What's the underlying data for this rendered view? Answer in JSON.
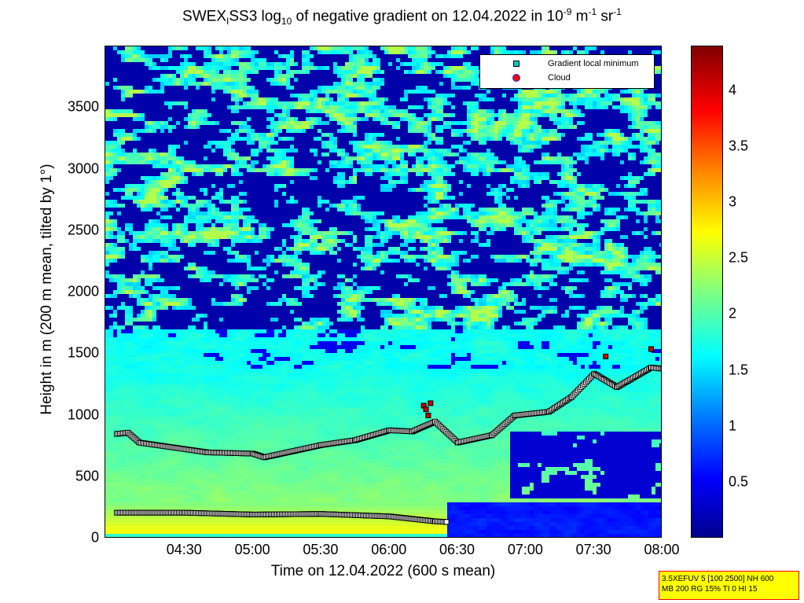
{
  "title": {
    "main": "SWEX",
    "sub1": "I",
    "mid": "SS3 log",
    "sub2": "10",
    "rest": " of negative gradient on 12.04.2022 in 10",
    "sup1": "-9",
    "unit1": " m",
    "sup2": "-1",
    "unit2": " sr",
    "sup3": "-1"
  },
  "chart_data": {
    "type": "heatmap",
    "xlabel": "Time on 12.04.2022 (600 s mean)",
    "ylabel": "Height in m (200 m mean, tilted by 1°)",
    "x_ticks": [
      "04:30",
      "05:00",
      "05:30",
      "06:00",
      "06:30",
      "07:00",
      "07:30",
      "08:00"
    ],
    "y_ticks": [
      "0",
      "500",
      "1000",
      "1500",
      "2000",
      "2500",
      "3000",
      "3500"
    ],
    "ylim": [
      0,
      4000
    ],
    "colorbar_ticks": [
      "0.5",
      "1",
      "1.5",
      "2",
      "2.5",
      "3",
      "3.5",
      "4"
    ],
    "colorbar_range": [
      0,
      4.4
    ],
    "legend": [
      {
        "label": "Gradient local minimum",
        "marker": "square",
        "color": "#00c8c8"
      },
      {
        "label": "Cloud",
        "marker": "circle",
        "color": "#ff0000"
      }
    ],
    "series": [
      {
        "name": "Gradient local minimum (lower layer)",
        "x": [
          "04:00",
          "04:30",
          "05:00",
          "05:30",
          "06:00",
          "06:20",
          "06:25"
        ],
        "y": [
          210,
          210,
          195,
          200,
          180,
          140,
          135
        ]
      },
      {
        "name": "Gradient local minimum (upper layer)",
        "x": [
          "04:00",
          "04:05",
          "04:10",
          "04:40",
          "05:00",
          "05:05",
          "05:30",
          "05:45",
          "06:00",
          "06:10",
          "06:20",
          "06:30",
          "06:45",
          "06:55",
          "07:10",
          "07:20",
          "07:30",
          "07:40",
          "07:55",
          "08:00"
        ],
        "y": [
          850,
          860,
          780,
          700,
          690,
          660,
          760,
          800,
          880,
          870,
          950,
          780,
          840,
          1000,
          1030,
          1150,
          1340,
          1230,
          1390,
          1380
        ]
      },
      {
        "name": "Cloud",
        "x": [
          "06:15",
          "06:16",
          "06:17",
          "06:18",
          "07:35",
          "07:55"
        ],
        "y": [
          1080,
          1050,
          1000,
          1100,
          1480,
          1540
        ]
      }
    ],
    "time_range_minutes": [
      0,
      245
    ]
  },
  "footer": {
    "line1": "3.5XEFUV 5 [100 2500] NH 600",
    "line2": "MB 200 RG 15% TI 0 HI 15"
  },
  "colors": {
    "background_field": "#1020a0",
    "marker_edge": "#000000",
    "marker_fill": "#ffffff"
  }
}
